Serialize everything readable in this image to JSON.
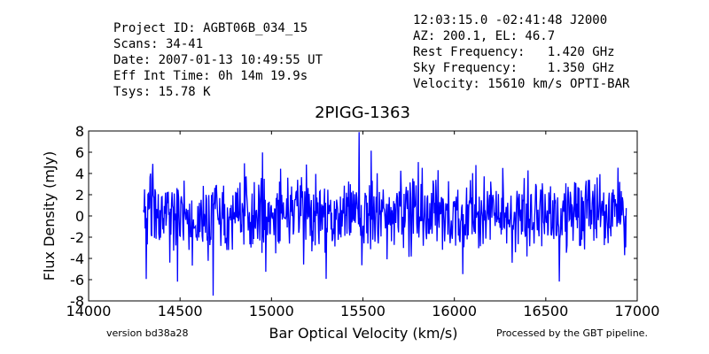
{
  "header": {
    "left": [
      "Project ID: AGBT06B_034_15",
      "Scans: 34-41",
      "Date: 2007-01-13 10:49:55 UT",
      "Eff Int Time: 0h 14m 19.9s",
      "Tsys: 15.78 K"
    ],
    "right": [
      "12:03:15.0 -02:41:48 J2000",
      "AZ: 200.1, EL: 46.7",
      "Rest Frequency:   1.420 GHz",
      "Sky Frequency:    1.350 GHz",
      "Velocity: 15610 km/s OPTI-BAR"
    ]
  },
  "footer": {
    "version": "version bd38a28",
    "processed": "Processed by the GBT pipeline.",
    "processed_color": "#e8473c"
  },
  "chart_data": {
    "type": "line",
    "title": "2PIGG-1363",
    "xlabel": "Bar Optical Velocity (km/s)",
    "ylabel": "Flux Density (mJy)",
    "xlim": [
      14000,
      17000
    ],
    "ylim": [
      -8,
      8
    ],
    "xticks": [
      14000,
      14500,
      15000,
      15500,
      16000,
      16500,
      17000
    ],
    "yticks": [
      -8,
      -6,
      -4,
      -2,
      0,
      2,
      4,
      6,
      8
    ],
    "grid": false,
    "series": [
      {
        "color": "#0000ff",
        "x_range": [
          14300,
          16940
        ],
        "y_summary": {
          "mean": 0.0,
          "rms": 1.9,
          "min": -7.5,
          "max": 7.9,
          "min_at_x": 14680,
          "max_at_x": 15480
        }
      }
    ]
  }
}
